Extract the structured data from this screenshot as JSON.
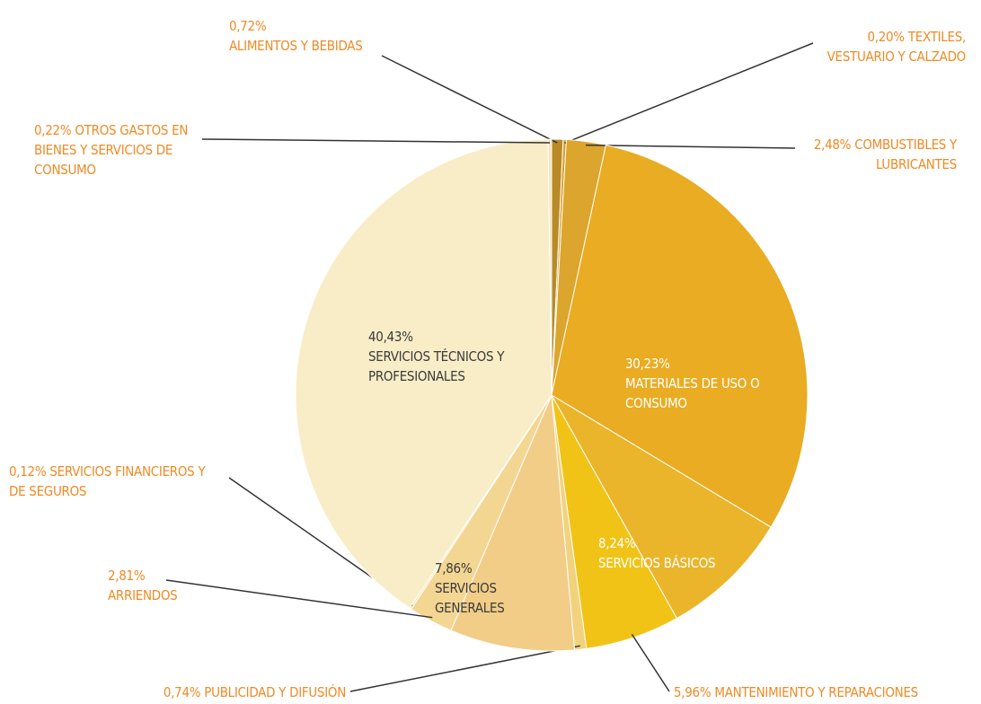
{
  "chart_data": {
    "type": "pie",
    "categories": [
      "ALIMENTOS Y BEBIDAS",
      "TEXTILES, VESTUARIO Y CALZADO",
      "COMBUSTIBLES Y LUBRICANTES",
      "MATERIALES DE USO O CONSUMO",
      "SERVICIOS BÁSICOS",
      "MANTENIMIENTO Y REPARACIONES",
      "PUBLICIDAD Y DIFUSIÓN",
      "SERVICIOS GENERALES",
      "ARRIENDOS",
      "SERVICIOS FINANCIEROS Y DE SEGUROS",
      "SERVICIOS TÉCNICOS Y PROFESIONALES",
      "OTROS GASTOS EN BIENES Y SERVICIOS DE CONSUMO"
    ],
    "values": [
      0.72,
      0.2,
      2.48,
      30.23,
      8.24,
      5.96,
      0.74,
      7.86,
      2.81,
      0.12,
      40.43,
      0.22
    ],
    "value_labels": [
      "0,72%",
      "0,20%",
      "2,48%",
      "30,23%",
      "8,24%",
      "5,96%",
      "0,74%",
      "7,86%",
      "2,81%",
      "0,12%",
      "40,43%",
      "0,22%"
    ],
    "colors": [
      "#b98a25",
      "#d6a233",
      "#dca52d",
      "#e9ac22",
      "#ebb52b",
      "#f1c316",
      "#f2d27c",
      "#f2cd88",
      "#f4d693",
      "#f6e1ab",
      "#f8edc7",
      "#f5e4b4"
    ]
  }
}
